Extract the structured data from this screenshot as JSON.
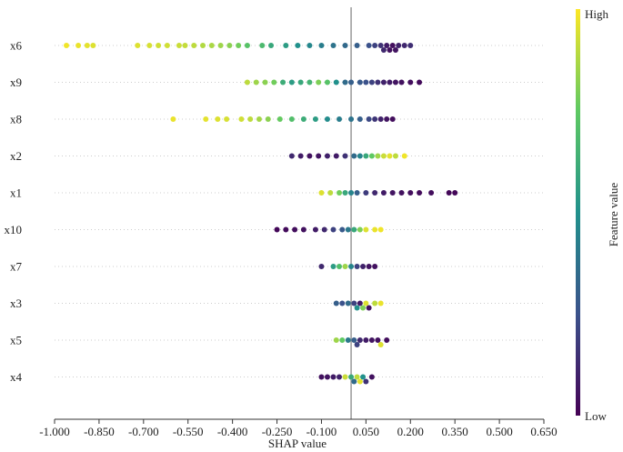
{
  "chart_data": {
    "type": "scatter",
    "subtype": "shap-beeswarm",
    "title": "",
    "xlabel": "SHAP value",
    "ylabel": "",
    "xlim": [
      -1.0,
      0.65
    ],
    "xticks": [
      -1.0,
      -0.85,
      -0.7,
      -0.55,
      -0.4,
      -0.25,
      -0.1,
      0.05,
      0.2,
      0.35,
      0.5,
      0.65
    ],
    "xtick_labels": [
      "-1.000",
      "-0.850",
      "-0.700",
      "-0.550",
      "-0.400",
      "-0.250",
      "-0.100",
      "0.050",
      "0.200",
      "0.350",
      "0.500",
      "0.650"
    ],
    "zero_line_x": 0.0,
    "grid": "dotted horizontal row guides",
    "features": [
      "x6",
      "x9",
      "x8",
      "x2",
      "x1",
      "x10",
      "x7",
      "x3",
      "x5",
      "x4"
    ],
    "colorbar": {
      "title": "Feature value",
      "high_label": "High",
      "low_label": "Low",
      "colormap": "viridis",
      "colors": [
        "#440154",
        "#3b528b",
        "#21918c",
        "#5ec962",
        "#fde725"
      ]
    },
    "points": {
      "x6": [
        [
          -0.96,
          0.98
        ],
        [
          -0.92,
          0.97
        ],
        [
          -0.89,
          0.96
        ],
        [
          -0.87,
          0.95
        ],
        [
          -0.72,
          0.95
        ],
        [
          -0.68,
          0.94
        ],
        [
          -0.65,
          0.93
        ],
        [
          -0.62,
          0.93
        ],
        [
          -0.58,
          0.92
        ],
        [
          -0.56,
          0.91
        ],
        [
          -0.53,
          0.9
        ],
        [
          -0.5,
          0.88
        ],
        [
          -0.47,
          0.87
        ],
        [
          -0.44,
          0.85
        ],
        [
          -0.41,
          0.82
        ],
        [
          -0.38,
          0.78
        ],
        [
          -0.35,
          0.72
        ],
        [
          -0.3,
          0.68
        ],
        [
          -0.27,
          0.6
        ],
        [
          -0.22,
          0.55
        ],
        [
          -0.18,
          0.5
        ],
        [
          -0.14,
          0.46
        ],
        [
          -0.1,
          0.42
        ],
        [
          -0.06,
          0.38
        ],
        [
          -0.02,
          0.34
        ],
        [
          0.02,
          0.3
        ],
        [
          0.06,
          0.25
        ],
        [
          0.08,
          0.2
        ],
        [
          0.1,
          0.15
        ],
        [
          0.11,
          0.12
        ],
        [
          0.12,
          0.08
        ],
        [
          0.13,
          0.05
        ],
        [
          0.14,
          0.04
        ],
        [
          0.15,
          0.06
        ],
        [
          0.16,
          0.1
        ],
        [
          0.18,
          0.12
        ],
        [
          0.2,
          0.14
        ]
      ],
      "x9": [
        [
          -0.35,
          0.9
        ],
        [
          -0.32,
          0.85
        ],
        [
          -0.29,
          0.82
        ],
        [
          -0.26,
          0.78
        ],
        [
          -0.23,
          0.62
        ],
        [
          -0.2,
          0.55
        ],
        [
          -0.17,
          0.6
        ],
        [
          -0.14,
          0.65
        ],
        [
          -0.11,
          0.8
        ],
        [
          -0.08,
          0.72
        ],
        [
          -0.05,
          0.5
        ],
        [
          -0.02,
          0.35
        ],
        [
          0.0,
          0.3
        ],
        [
          0.03,
          0.28
        ],
        [
          0.05,
          0.25
        ],
        [
          0.07,
          0.2
        ],
        [
          0.09,
          0.15
        ],
        [
          0.11,
          0.1
        ],
        [
          0.13,
          0.08
        ],
        [
          0.15,
          0.06
        ],
        [
          0.17,
          0.05
        ],
        [
          0.2,
          0.04
        ],
        [
          0.23,
          0.03
        ]
      ],
      "x8": [
        [
          -0.6,
          0.97
        ],
        [
          -0.49,
          0.96
        ],
        [
          -0.45,
          0.95
        ],
        [
          -0.42,
          0.94
        ],
        [
          -0.37,
          0.93
        ],
        [
          -0.34,
          0.9
        ],
        [
          -0.31,
          0.86
        ],
        [
          -0.28,
          0.82
        ],
        [
          -0.24,
          0.76
        ],
        [
          -0.2,
          0.7
        ],
        [
          -0.16,
          0.62
        ],
        [
          -0.12,
          0.55
        ],
        [
          -0.08,
          0.48
        ],
        [
          -0.04,
          0.42
        ],
        [
          0.0,
          0.38
        ],
        [
          0.03,
          0.3
        ],
        [
          0.06,
          0.22
        ],
        [
          0.08,
          0.16
        ],
        [
          0.1,
          0.1
        ],
        [
          0.12,
          0.06
        ],
        [
          0.14,
          0.04
        ]
      ],
      "x2": [
        [
          -0.2,
          0.12
        ],
        [
          -0.17,
          0.08
        ],
        [
          -0.14,
          0.05
        ],
        [
          -0.11,
          0.06
        ],
        [
          -0.08,
          0.1
        ],
        [
          -0.05,
          0.08
        ],
        [
          -0.02,
          0.15
        ],
        [
          0.01,
          0.35
        ],
        [
          0.03,
          0.45
        ],
        [
          0.05,
          0.6
        ],
        [
          0.07,
          0.75
        ],
        [
          0.09,
          0.85
        ],
        [
          0.11,
          0.92
        ],
        [
          0.13,
          0.96
        ],
        [
          0.15,
          0.9
        ],
        [
          0.18,
          0.98
        ]
      ],
      "x1": [
        [
          -0.1,
          0.95
        ],
        [
          -0.07,
          0.9
        ],
        [
          -0.04,
          0.78
        ],
        [
          -0.02,
          0.6
        ],
        [
          0.0,
          0.45
        ],
        [
          0.02,
          0.3
        ],
        [
          0.05,
          0.18
        ],
        [
          0.08,
          0.12
        ],
        [
          0.11,
          0.08
        ],
        [
          0.14,
          0.06
        ],
        [
          0.17,
          0.05
        ],
        [
          0.2,
          0.04
        ],
        [
          0.23,
          0.03
        ],
        [
          0.27,
          0.04
        ],
        [
          0.33,
          0.02
        ],
        [
          0.35,
          0.02
        ]
      ],
      "x10": [
        [
          -0.25,
          0.02
        ],
        [
          -0.22,
          0.03
        ],
        [
          -0.19,
          0.04
        ],
        [
          -0.16,
          0.05
        ],
        [
          -0.12,
          0.08
        ],
        [
          -0.09,
          0.12
        ],
        [
          -0.06,
          0.2
        ],
        [
          -0.03,
          0.28
        ],
        [
          -0.01,
          0.4
        ],
        [
          0.01,
          0.6
        ],
        [
          0.03,
          0.8
        ],
        [
          0.05,
          0.95
        ],
        [
          0.08,
          0.97
        ],
        [
          0.1,
          0.98
        ]
      ],
      "x7": [
        [
          -0.1,
          0.12
        ],
        [
          -0.06,
          0.55
        ],
        [
          -0.04,
          0.7
        ],
        [
          -0.02,
          0.85
        ],
        [
          0.0,
          0.45
        ],
        [
          0.02,
          0.2
        ],
        [
          0.04,
          0.1
        ],
        [
          0.06,
          0.06
        ],
        [
          0.08,
          0.05
        ]
      ],
      "x3": [
        [
          -0.05,
          0.3
        ],
        [
          -0.03,
          0.25
        ],
        [
          -0.01,
          0.35
        ],
        [
          0.01,
          0.2
        ],
        [
          0.02,
          0.5
        ],
        [
          0.03,
          0.08
        ],
        [
          0.04,
          0.8
        ],
        [
          0.05,
          0.95
        ],
        [
          0.06,
          0.05
        ],
        [
          0.08,
          0.9
        ],
        [
          0.1,
          0.97
        ]
      ],
      "x5": [
        [
          -0.05,
          0.85
        ],
        [
          -0.03,
          0.75
        ],
        [
          -0.01,
          0.4
        ],
        [
          0.01,
          0.3
        ],
        [
          0.02,
          0.2
        ],
        [
          0.03,
          0.12
        ],
        [
          0.05,
          0.08
        ],
        [
          0.07,
          0.06
        ],
        [
          0.09,
          0.05
        ],
        [
          0.1,
          0.95
        ],
        [
          0.12,
          0.04
        ]
      ],
      "x4": [
        [
          -0.1,
          0.05
        ],
        [
          -0.08,
          0.06
        ],
        [
          -0.06,
          0.08
        ],
        [
          -0.04,
          0.1
        ],
        [
          -0.02,
          0.92
        ],
        [
          0.0,
          0.6
        ],
        [
          0.01,
          0.35
        ],
        [
          0.02,
          0.9
        ],
        [
          0.03,
          0.96
        ],
        [
          0.04,
          0.5
        ],
        [
          0.05,
          0.15
        ],
        [
          0.07,
          0.05
        ]
      ]
    }
  }
}
